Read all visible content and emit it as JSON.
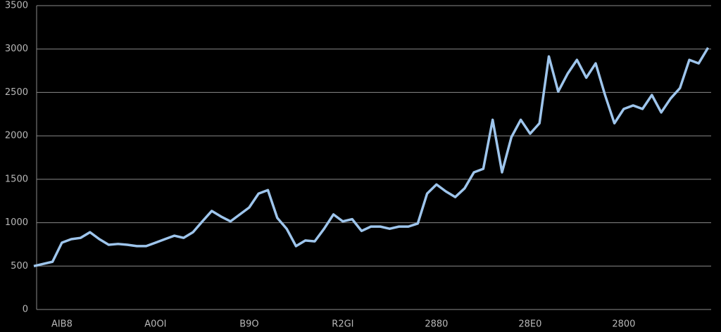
{
  "chart_data": {
    "type": "line",
    "categories": [
      null,
      null,
      null,
      "AIB8",
      null,
      null,
      null,
      null,
      null,
      null,
      null,
      null,
      null,
      "A0OI",
      null,
      null,
      null,
      null,
      null,
      null,
      null,
      null,
      null,
      "B9O",
      null,
      null,
      null,
      null,
      null,
      null,
      null,
      null,
      null,
      "R2GI",
      null,
      null,
      null,
      null,
      null,
      null,
      null,
      null,
      null,
      "2880",
      null,
      null,
      null,
      null,
      null,
      null,
      null,
      null,
      null,
      "28E0",
      null,
      null,
      null,
      null,
      null,
      null,
      null,
      null,
      null,
      "2800",
      null,
      null,
      null,
      null,
      null,
      null,
      null,
      null,
      null
    ],
    "series": [
      {
        "color": "#9ec5ec",
        "values": [
          500,
          525,
          550,
          770,
          810,
          825,
          890,
          810,
          745,
          755,
          745,
          730,
          730,
          770,
          810,
          850,
          825,
          890,
          1015,
          1135,
          1070,
          1015,
          1095,
          1175,
          1335,
          1375,
          1055,
          930,
          730,
          795,
          785,
          930,
          1095,
          1015,
          1040,
          905,
          955,
          955,
          930,
          955,
          955,
          990,
          1335,
          1440,
          1360,
          1295,
          1395,
          1580,
          1620,
          2185,
          1580,
          1985,
          2185,
          2025,
          2145,
          2915,
          2510,
          2715,
          2875,
          2670,
          2835,
          2470,
          2145,
          2310,
          2350,
          2310,
          2470,
          2270,
          2430,
          2550,
          2875,
          2835,
          3015
        ]
      }
    ],
    "ylim": [
      0,
      3500
    ],
    "yticks": [
      0,
      500,
      1000,
      1500,
      2000,
      2500,
      3000,
      3500
    ],
    "grid": true
  }
}
